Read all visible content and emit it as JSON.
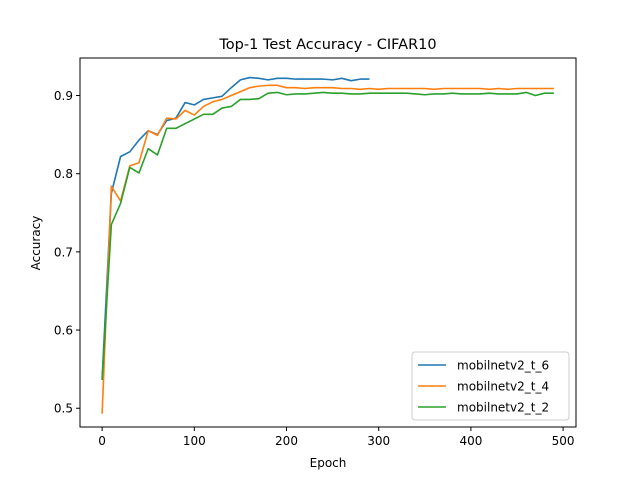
{
  "chart_data": {
    "type": "line",
    "title": "Top-1 Test Accuracy - CIFAR10",
    "xlabel": "Epoch",
    "ylabel": "Accuracy",
    "xlim": [
      -24,
      514
    ],
    "ylim": [
      0.476,
      0.948
    ],
    "xticks": [
      0,
      100,
      200,
      300,
      400,
      500
    ],
    "yticks": [
      0.5,
      0.6,
      0.7,
      0.8,
      0.9
    ],
    "xtick_labels": [
      "0",
      "100",
      "200",
      "300",
      "400",
      "500"
    ],
    "ytick_labels": [
      "0.5",
      "0.6",
      "0.7",
      "0.8",
      "0.9"
    ],
    "grid": false,
    "legend_position": "lower-right",
    "series": [
      {
        "name": "mobilnetv2_t_6",
        "color": "#1f77b4",
        "x": [
          0,
          10,
          20,
          30,
          40,
          50,
          60,
          70,
          80,
          90,
          100,
          110,
          120,
          130,
          140,
          150,
          160,
          170,
          180,
          190,
          200,
          210,
          220,
          230,
          240,
          250,
          260,
          270,
          280,
          290
        ],
        "y": [
          0.538,
          0.775,
          0.822,
          0.828,
          0.843,
          0.855,
          0.85,
          0.868,
          0.871,
          0.891,
          0.888,
          0.895,
          0.897,
          0.899,
          0.91,
          0.92,
          0.923,
          0.922,
          0.92,
          0.922,
          0.922,
          0.921,
          0.921,
          0.921,
          0.921,
          0.92,
          0.922,
          0.919,
          0.921,
          0.921
        ]
      },
      {
        "name": "mobilnetv2_t_4",
        "color": "#ff7f0e",
        "x": [
          0,
          10,
          20,
          30,
          40,
          50,
          60,
          70,
          80,
          90,
          100,
          110,
          120,
          130,
          140,
          150,
          160,
          170,
          180,
          190,
          200,
          210,
          220,
          230,
          240,
          250,
          260,
          270,
          280,
          290,
          300,
          310,
          320,
          330,
          340,
          350,
          360,
          370,
          380,
          390,
          400,
          410,
          420,
          430,
          440,
          450,
          460,
          470,
          480,
          490
        ],
        "y": [
          0.493,
          0.784,
          0.765,
          0.81,
          0.814,
          0.855,
          0.849,
          0.871,
          0.87,
          0.881,
          0.875,
          0.886,
          0.892,
          0.895,
          0.9,
          0.905,
          0.91,
          0.912,
          0.913,
          0.913,
          0.91,
          0.91,
          0.909,
          0.91,
          0.91,
          0.91,
          0.909,
          0.909,
          0.908,
          0.909,
          0.908,
          0.909,
          0.909,
          0.909,
          0.909,
          0.909,
          0.908,
          0.909,
          0.909,
          0.909,
          0.909,
          0.909,
          0.908,
          0.909,
          0.908,
          0.909,
          0.909,
          0.909,
          0.909,
          0.909
        ]
      },
      {
        "name": "mobilnetv2_t_2",
        "color": "#2ca02c",
        "x": [
          0,
          10,
          20,
          30,
          40,
          50,
          60,
          70,
          80,
          90,
          100,
          110,
          120,
          130,
          140,
          150,
          160,
          170,
          180,
          190,
          200,
          210,
          220,
          230,
          240,
          250,
          260,
          270,
          280,
          290,
          300,
          310,
          320,
          330,
          340,
          350,
          360,
          370,
          380,
          390,
          400,
          410,
          420,
          430,
          440,
          450,
          460,
          470,
          480,
          490
        ],
        "y": [
          0.536,
          0.735,
          0.762,
          0.808,
          0.801,
          0.832,
          0.824,
          0.858,
          0.858,
          0.864,
          0.87,
          0.876,
          0.876,
          0.884,
          0.886,
          0.895,
          0.895,
          0.896,
          0.903,
          0.904,
          0.901,
          0.902,
          0.902,
          0.903,
          0.904,
          0.903,
          0.903,
          0.902,
          0.902,
          0.903,
          0.903,
          0.903,
          0.903,
          0.903,
          0.902,
          0.901,
          0.902,
          0.902,
          0.903,
          0.902,
          0.902,
          0.902,
          0.903,
          0.902,
          0.902,
          0.902,
          0.904,
          0.9,
          0.903,
          0.903
        ]
      }
    ]
  }
}
